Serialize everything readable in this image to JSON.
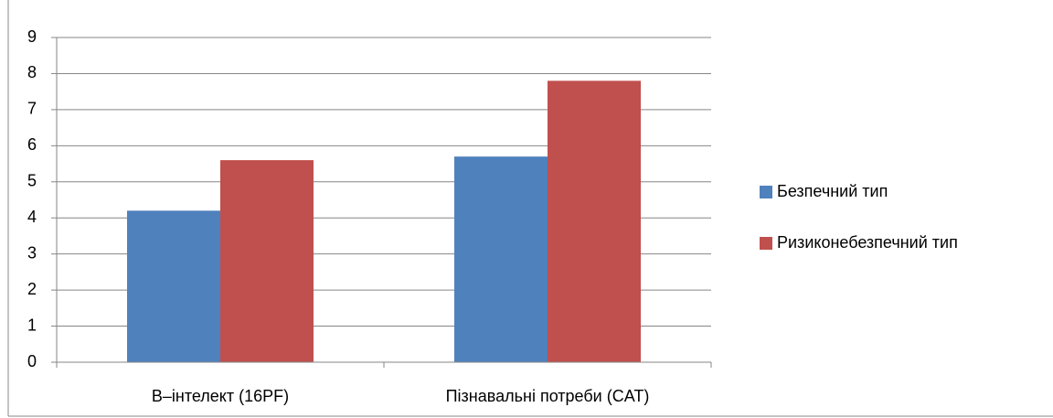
{
  "chart_data": {
    "type": "bar",
    "categories": [
      "B–інтелект (16PF)",
      "Пізнавальні потреби (CAT)"
    ],
    "series": [
      {
        "name": "Безпечний тип",
        "color": "#4f81bd",
        "values": [
          4.2,
          5.7
        ]
      },
      {
        "name": "Ризиконебезпечний тип",
        "color": "#c0504d",
        "values": [
          5.6,
          7.8
        ]
      }
    ],
    "ylim": [
      0,
      9
    ],
    "yticks": [
      0,
      1,
      2,
      3,
      4,
      5,
      6,
      7,
      8,
      9
    ],
    "grid": true,
    "legend": "right"
  }
}
